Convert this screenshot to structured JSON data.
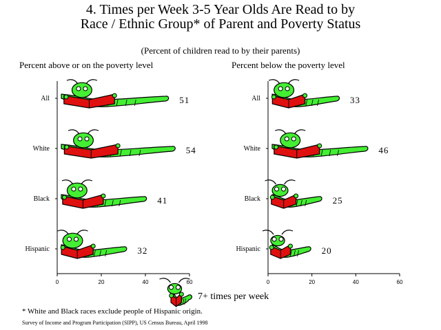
{
  "title_line1": "4. Times per Week 3-5 Year Olds Are Read to by",
  "title_line2": "Race / Ethnic Group* of Parent and Poverty Status",
  "subtitle": "(Percent of children read to by their parents)",
  "legend_label": "7+ times per week",
  "footnote": "* White and Black races exclude people of Hispanic origin.",
  "source": "Survey of Income and Program Participation (SIPP),  US Census Bureau, April 1998",
  "colors": {
    "book": "#e01010",
    "worm": "#44ee33",
    "outline": "#000000"
  },
  "chart_data": [
    {
      "type": "bar",
      "title": "Percent above or on the poverty level",
      "categories": [
        "All",
        "White",
        "Black",
        "Hispanic"
      ],
      "values": [
        51,
        54,
        41,
        32
      ],
      "xlim": [
        0,
        60
      ],
      "xticks": [
        0,
        20,
        40,
        60
      ],
      "series": [
        {
          "name": "7+ times per week",
          "values": [
            51,
            54,
            41,
            32
          ]
        }
      ]
    },
    {
      "type": "bar",
      "title": "Percent below the poverty level",
      "categories": [
        "All",
        "White",
        "Black",
        "Hispanic"
      ],
      "values": [
        33,
        46,
        25,
        20
      ],
      "xlim": [
        0,
        60
      ],
      "xticks": [
        0,
        20,
        40,
        60
      ],
      "series": [
        {
          "name": "7+ times per week",
          "values": [
            33,
            46,
            25,
            20
          ]
        }
      ]
    }
  ]
}
